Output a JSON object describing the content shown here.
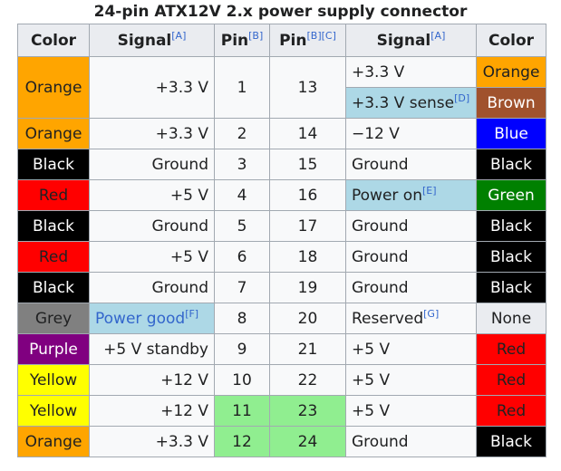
{
  "caption": "24-pin ATX12V 2.x power supply connector",
  "headers": {
    "color_left": "Color",
    "signal_left": "Signal",
    "signal_left_ref": "[A]",
    "pin_left": "Pin",
    "pin_left_ref": "[B]",
    "pin_right": "Pin",
    "pin_right_ref": "[B][C]",
    "signal_right": "Signal",
    "signal_right_ref": "[A]",
    "color_right": "Color"
  },
  "rows": [
    {
      "lcolor": "Orange",
      "lsignal": "+3.3 V",
      "lpin": "1",
      "rpin": "13",
      "rsignal": "+3.3 V",
      "rcolor": "Orange"
    },
    {
      "rsignal": "+3.3 V sense",
      "rsignal_ref": "[D]",
      "rcolor": "Brown"
    },
    {
      "lcolor": "Orange",
      "lsignal": "+3.3 V",
      "lpin": "2",
      "rpin": "14",
      "rsignal": "−12 V",
      "rcolor": "Blue"
    },
    {
      "lcolor": "Black",
      "lsignal": "Ground",
      "lpin": "3",
      "rpin": "15",
      "rsignal": "Ground",
      "rcolor": "Black"
    },
    {
      "lcolor": "Red",
      "lsignal": "+5 V",
      "lpin": "4",
      "rpin": "16",
      "rsignal": "Power on",
      "rsignal_ref": "[E]",
      "rcolor": "Green"
    },
    {
      "lcolor": "Black",
      "lsignal": "Ground",
      "lpin": "5",
      "rpin": "17",
      "rsignal": "Ground",
      "rcolor": "Black"
    },
    {
      "lcolor": "Red",
      "lsignal": "+5 V",
      "lpin": "6",
      "rpin": "18",
      "rsignal": "Ground",
      "rcolor": "Black"
    },
    {
      "lcolor": "Black",
      "lsignal": "Ground",
      "lpin": "7",
      "rpin": "19",
      "rsignal": "Ground",
      "rcolor": "Black"
    },
    {
      "lcolor": "Grey",
      "lsignal": "Power good",
      "lsignal_ref": "[F]",
      "lpin": "8",
      "rpin": "20",
      "rsignal": "Reserved",
      "rsignal_ref": "[G]",
      "rcolor": "None"
    },
    {
      "lcolor": "Purple",
      "lsignal": "+5 V standby",
      "lpin": "9",
      "rpin": "21",
      "rsignal": "+5 V",
      "rcolor": "Red"
    },
    {
      "lcolor": "Yellow",
      "lsignal": "+12 V",
      "lpin": "10",
      "rpin": "22",
      "rsignal": "+5 V",
      "rcolor": "Red"
    },
    {
      "lcolor": "Yellow",
      "lsignal": "+12 V",
      "lpin": "11",
      "rpin": "23",
      "rsignal": "+5 V",
      "rcolor": "Red"
    },
    {
      "lcolor": "Orange",
      "lsignal": "+3.3 V",
      "lpin": "12",
      "rpin": "24",
      "rsignal": "Ground",
      "rcolor": "Black"
    }
  ],
  "swatches": {
    "orange": "#ffa500",
    "brown": "#a0522d",
    "blue": "#0000ff",
    "black": "#000000",
    "red": "#ff0000",
    "green": "#008000",
    "grey": "#808080",
    "purple": "#800080",
    "yellow": "#ffff00",
    "none": "#eaecf0",
    "highlight_signal": "#add8e6",
    "highlight_pin": "#90ee90"
  }
}
